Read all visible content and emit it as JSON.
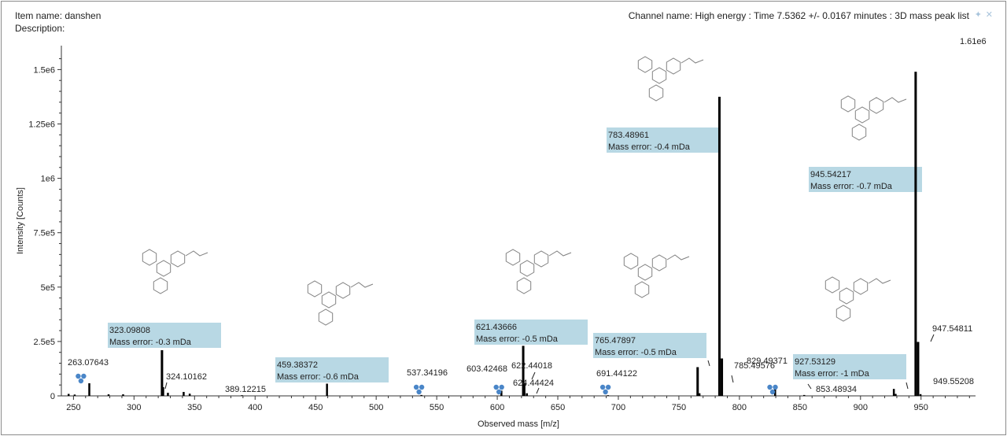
{
  "header": {
    "item_name": "Item name: danshen",
    "description": "Description:",
    "channel": "Channel name: High energy : Time 7.5362 +/- 0.0167 minutes : 3D mass peak list",
    "pin_icon": "pin-icon",
    "close_icon": "close-icon"
  },
  "chart_data": {
    "type": "bar",
    "title": "",
    "xlabel": "Observed mass [m/z]",
    "ylabel": "Intensity [Counts]",
    "xlim": [
      240,
      995
    ],
    "ylim": [
      0,
      1610000
    ],
    "max_label": "1.61e6",
    "x_ticks": [
      250,
      300,
      350,
      400,
      450,
      500,
      550,
      600,
      650,
      700,
      750,
      800,
      850,
      900,
      950
    ],
    "y_ticks": [
      {
        "value": 0,
        "label": "0"
      },
      {
        "value": 250000,
        "label": "2.5e5"
      },
      {
        "value": 500000,
        "label": "5e5"
      },
      {
        "value": 750000,
        "label": "7.5e5"
      },
      {
        "value": 1000000,
        "label": "1e6"
      },
      {
        "value": 1250000,
        "label": "1.25e6"
      },
      {
        "value": 1500000,
        "label": "1.5e6"
      }
    ],
    "peaks": [
      {
        "mz": 246,
        "intensity": 9000
      },
      {
        "mz": 251,
        "intensity": 6000
      },
      {
        "mz": 263.07643,
        "intensity": 58000,
        "label": "263.07643"
      },
      {
        "mz": 279,
        "intensity": 7000
      },
      {
        "mz": 291,
        "intensity": 7000
      },
      {
        "mz": 323.09808,
        "intensity": 210000
      },
      {
        "mz": 324.10162,
        "intensity": 40000,
        "label": "324.10162"
      },
      {
        "mz": 328,
        "intensity": 14000
      },
      {
        "mz": 341,
        "intensity": 18000
      },
      {
        "mz": 346,
        "intensity": 10000
      },
      {
        "mz": 389.12215,
        "intensity": 3000,
        "label": "389.12215"
      },
      {
        "mz": 459.38372,
        "intensity": 56000
      },
      {
        "mz": 537.34196,
        "intensity": 4000,
        "label": "537.34196"
      },
      {
        "mz": 603.42468,
        "intensity": 24000,
        "label": "603.42468"
      },
      {
        "mz": 621.43666,
        "intensity": 230000
      },
      {
        "mz": 622.44018,
        "intensity": 60000,
        "label": "622.44018"
      },
      {
        "mz": 624.44424,
        "intensity": 12000,
        "label": "624.44424"
      },
      {
        "mz": 691.44122,
        "intensity": 3000,
        "label": "691.44122"
      },
      {
        "mz": 765.47897,
        "intensity": 132000
      },
      {
        "mz": 767,
        "intensity": 12000
      },
      {
        "mz": 783.48961,
        "intensity": 1375000
      },
      {
        "mz": 785.49576,
        "intensity": 172000,
        "label": "785.49576"
      },
      {
        "mz": 829.49371,
        "intensity": 30000,
        "label": "829.49371"
      },
      {
        "mz": 853.48934,
        "intensity": 4000,
        "label": "853.48934"
      },
      {
        "mz": 927.53129,
        "intensity": 32000
      },
      {
        "mz": 929,
        "intensity": 9000
      },
      {
        "mz": 945.54217,
        "intensity": 1490000
      },
      {
        "mz": 947.54811,
        "intensity": 248000,
        "label": "947.54811"
      },
      {
        "mz": 949.55208,
        "intensity": 8000,
        "label": "949.55208"
      }
    ],
    "annotations": [
      {
        "mz": 323.09808,
        "mass": "323.09808",
        "error": "Mass error: -0.3 mDa"
      },
      {
        "mz": 459.38372,
        "mass": "459.38372",
        "error": "Mass error: -0.6 mDa"
      },
      {
        "mz": 621.43666,
        "mass": "621.43666",
        "error": "Mass error: -0.5 mDa"
      },
      {
        "mz": 765.47897,
        "mass": "765.47897",
        "error": "Mass error: -0.5 mDa"
      },
      {
        "mz": 783.48961,
        "mass": "783.48961",
        "error": "Mass error: -0.4 mDa"
      },
      {
        "mz": 927.53129,
        "mass": "927.53129",
        "error": "Mass error: -1 mDa"
      },
      {
        "mz": 945.54217,
        "mass": "945.54217",
        "error": "Mass error: -0.7 mDa"
      }
    ],
    "fragment_icons": [
      263,
      537,
      603,
      691,
      829
    ],
    "structures": [
      323,
      459,
      621,
      765,
      783,
      927,
      945
    ],
    "colors": {
      "bar": "#000000",
      "annotation_bg": "#b8d8e4",
      "icon": "#4a86c8",
      "axis": "#333333"
    }
  }
}
